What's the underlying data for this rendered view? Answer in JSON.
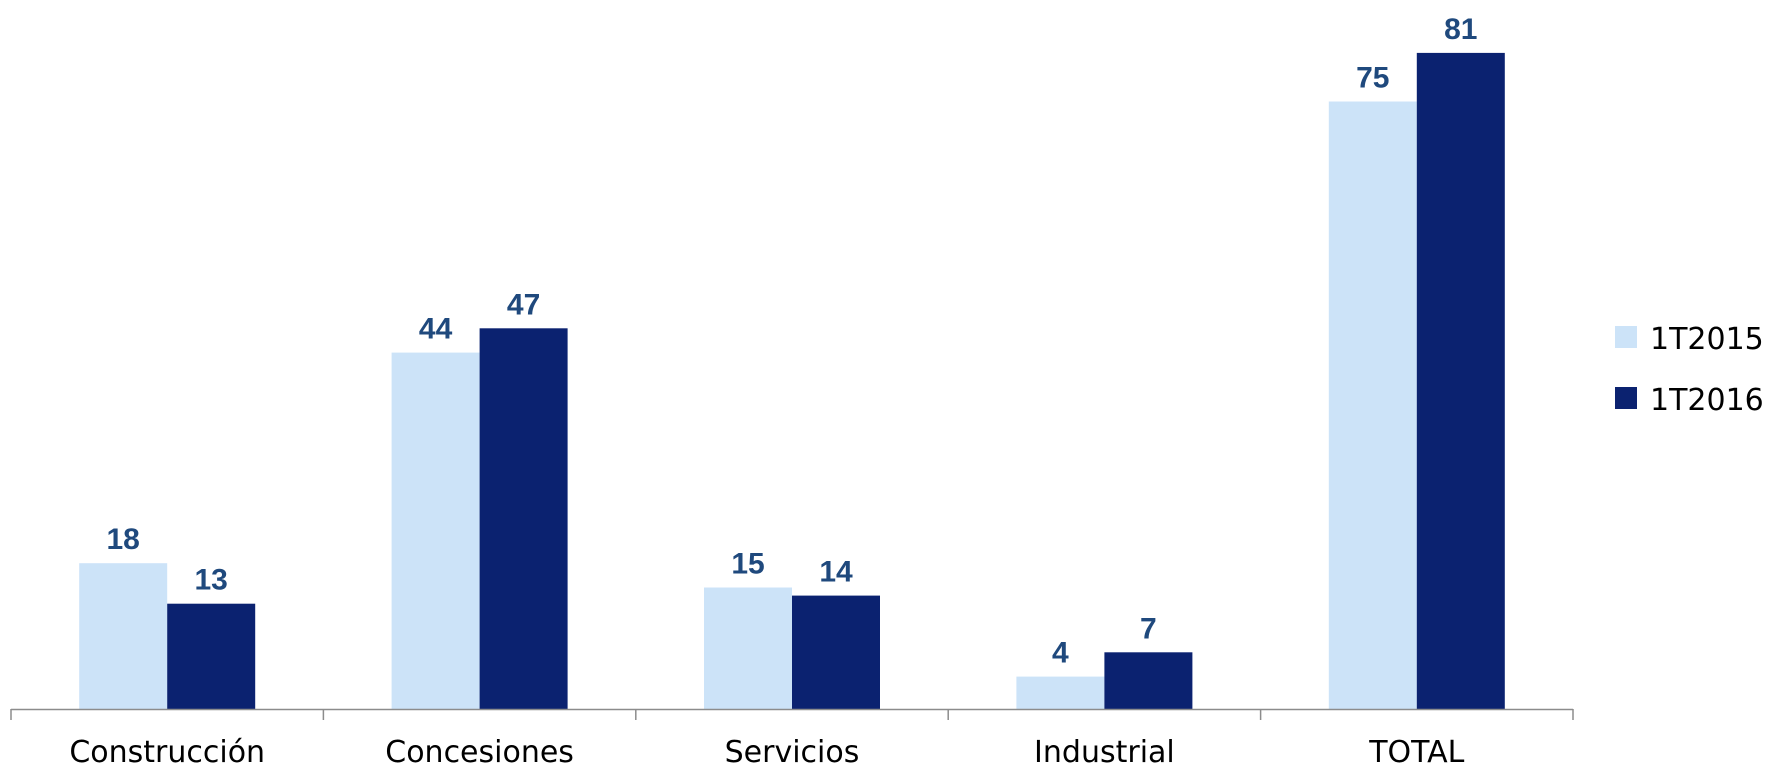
{
  "chart_data": {
    "type": "bar",
    "categories": [
      "Construcción",
      "Concesiones",
      "Servicios",
      "Industrial",
      "TOTAL"
    ],
    "series": [
      {
        "name": "1T2015",
        "values": [
          18,
          44,
          15,
          4,
          75
        ],
        "color": "#cce3f8"
      },
      {
        "name": "1T2016",
        "values": [
          13,
          47,
          14,
          7,
          81
        ],
        "color": "#0b2270"
      }
    ],
    "title": "",
    "xlabel": "",
    "ylabel": "",
    "ylim": [
      0,
      85
    ],
    "grid": false,
    "legend_position": "right",
    "data_labels": true,
    "label_color": "#1f497d",
    "axis_color": "#8c8c8c"
  }
}
